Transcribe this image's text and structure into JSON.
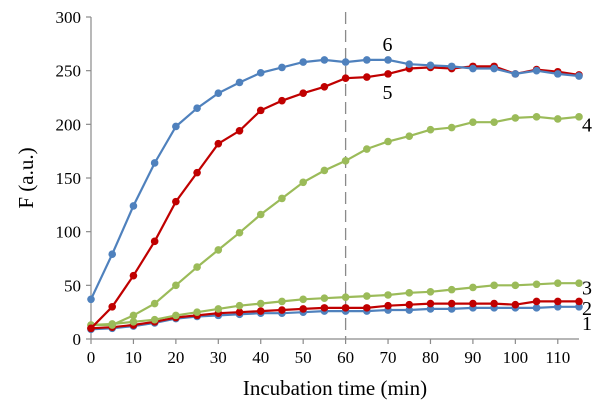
{
  "chart_data": {
    "type": "line",
    "title": "",
    "xlabel": "Incubation time (min)",
    "ylabel": "F (a.u.)",
    "xlim": [
      0,
      115
    ],
    "ylim": [
      0,
      300
    ],
    "xticks": [
      "0",
      "10",
      "20",
      "30",
      "40",
      "50",
      "60",
      "70",
      "80",
      "90",
      "100",
      "110"
    ],
    "yticks": [
      "0",
      "50",
      "100",
      "150",
      "200",
      "250",
      "300"
    ],
    "reference_line_x": 60,
    "grid": false,
    "legend": "none",
    "x": [
      0,
      5,
      10,
      15,
      20,
      25,
      30,
      35,
      40,
      45,
      50,
      55,
      60,
      65,
      70,
      75,
      80,
      85,
      90,
      95,
      100,
      105,
      110,
      115
    ],
    "series": [
      {
        "name": "1",
        "color": "#4f81bd",
        "values": [
          9,
          10,
          12,
          15,
          19,
          21,
          22,
          23,
          24,
          24,
          25,
          26,
          26,
          26,
          27,
          27,
          28,
          28,
          29,
          29,
          29,
          29,
          30,
          30
        ]
      },
      {
        "name": "2",
        "color": "#c00000",
        "values": [
          10,
          11,
          13,
          16,
          20,
          22,
          24,
          25,
          26,
          27,
          28,
          29,
          29,
          29,
          31,
          32,
          33,
          33,
          33,
          33,
          32,
          35,
          35,
          35
        ]
      },
      {
        "name": "3",
        "color": "#9bbb59",
        "values": [
          13,
          14,
          16,
          18,
          22,
          25,
          28,
          31,
          33,
          35,
          37,
          38,
          39,
          40,
          41,
          43,
          44,
          46,
          48,
          50,
          50,
          51,
          52,
          52
        ]
      },
      {
        "name": "4",
        "color": "#9bbb59",
        "values": [
          13,
          13,
          22,
          33,
          50,
          67,
          83,
          99,
          116,
          131,
          146,
          157,
          166,
          177,
          184,
          189,
          195,
          197,
          202,
          202,
          206,
          207,
          205,
          207
        ]
      },
      {
        "name": "5",
        "color": "#c00000",
        "values": [
          10,
          30,
          59,
          91,
          128,
          155,
          182,
          194,
          213,
          222,
          229,
          235,
          243,
          244,
          247,
          252,
          253,
          252,
          254,
          254,
          247,
          251,
          249,
          246
        ]
      },
      {
        "name": "6",
        "color": "#4f81bd",
        "values": [
          37,
          79,
          124,
          164,
          198,
          215,
          229,
          239,
          248,
          253,
          258,
          260,
          258,
          260,
          260,
          256,
          255,
          254,
          252,
          252,
          247,
          250,
          247,
          245
        ]
      }
    ],
    "series_label_values": {
      "1": {
        "x": 115,
        "y": 15
      },
      "2": {
        "x": 115,
        "y": 29
      },
      "3": {
        "x": 115,
        "y": 48
      },
      "4": {
        "x": 115,
        "y": 200
      },
      "5": {
        "x": 68,
        "y": 230
      },
      "6": {
        "x": 68,
        "y": 275
      }
    }
  }
}
